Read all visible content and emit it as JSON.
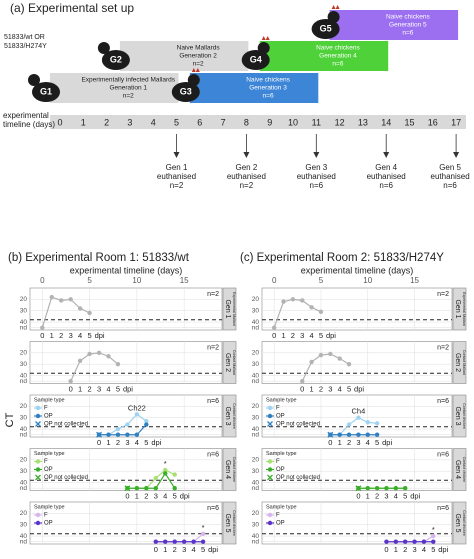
{
  "setup": {
    "title": "(a) Experimental set up",
    "virus": [
      "51833/wt  OR",
      "51833/H274Y"
    ],
    "groups": [
      {
        "icon": "G1",
        "lines": [
          "Experimentally infected Mallards",
          "Generation 1",
          "n=2"
        ],
        "color": "#d9d9d9",
        "days": [
          0,
          5
        ]
      },
      {
        "icon": "G2",
        "lines": [
          "Naive Mallards",
          "Generation 2",
          "n=2"
        ],
        "color": "#d9d9d9",
        "days": [
          3,
          8
        ]
      },
      {
        "icon": "G3",
        "lines": [
          "Naive chickens",
          "Generation 3",
          "n=6"
        ],
        "color": "#3d85d6",
        "days": [
          6,
          11
        ]
      },
      {
        "icon": "G4",
        "lines": [
          "Naive chickens",
          "Generation 4",
          "n=6"
        ],
        "color": "#4fd13a",
        "days": [
          9,
          14
        ]
      },
      {
        "icon": "G5",
        "lines": [
          "Naive chickens",
          "Generation 5",
          "n=6"
        ],
        "color": "#9b6ff0",
        "days": [
          12,
          17
        ]
      }
    ],
    "timeline_label": [
      "experimental",
      "timeline (days)"
    ],
    "days": [
      0,
      1,
      2,
      3,
      4,
      5,
      6,
      7,
      8,
      9,
      10,
      11,
      12,
      13,
      14,
      15,
      16,
      17
    ],
    "euthanised": [
      {
        "day": 5,
        "lines": [
          "Gen 1",
          "euthanised",
          "n=2"
        ]
      },
      {
        "day": 8,
        "lines": [
          "Gen 2",
          "euthanised",
          "n=2"
        ]
      },
      {
        "day": 11,
        "lines": [
          "Gen 3",
          "euthanised",
          "n=6"
        ]
      },
      {
        "day": 14,
        "lines": [
          "Gen 4",
          "euthanised",
          "n=6"
        ]
      },
      {
        "day": 17,
        "lines": [
          "Gen 5",
          "euthanised",
          "n=6"
        ]
      }
    ]
  },
  "ylabel": "CT",
  "rooms": [
    {
      "title": "(b) Experimental Room 1: 51833/wt",
      "axis_label": "experimental timeline (days)",
      "xlim": [
        -1.3,
        19
      ],
      "xticks": [
        0,
        5,
        10,
        15
      ],
      "ylim": [
        10,
        47
      ],
      "yticks": [
        20,
        30,
        40,
        {
          "value": 45,
          "label": "nd"
        }
      ],
      "threshold": 38,
      "dpi_label": "dpi",
      "dpi_ticks": [
        0,
        1,
        2,
        3,
        4,
        5
      ],
      "panels": [
        {
          "n": "n=2",
          "gen": "Gen 1",
          "role": "Experimental Mallard",
          "start": 0,
          "series": [
            {
              "color": "#b3b3b3",
              "values": [
                45,
                18,
                21,
                20,
                28,
                32
              ]
            }
          ]
        },
        {
          "n": "n=2",
          "gen": "Gen 2",
          "role": "Contact Mallard",
          "start": 3,
          "series": [
            {
              "color": "#b3b3b3",
              "values": [
                45,
                27,
                21,
                20,
                23,
                30
              ]
            }
          ]
        },
        {
          "n": "n=6",
          "gen": "Gen 3",
          "role": "Contact chicken",
          "start": 6,
          "legend_title": "Sample type",
          "annotation": "Ch22",
          "series": [
            {
              "name": "F",
              "color": "#9ed3f2",
              "values": [
                45,
                45,
                40,
                36,
                27,
                33
              ]
            },
            {
              "name": "OP",
              "color": "#2f7fc1",
              "values": [
                45,
                45,
                45,
                45,
                45,
                36
              ]
            },
            {
              "name": "OP not collected",
              "color": "#2f7fc1",
              "marker": "x",
              "values": [
                45,
                null,
                null,
                null,
                null,
                null
              ]
            }
          ]
        },
        {
          "n": "n=6",
          "gen": "Gen 4",
          "role": "Contact chicken",
          "start": 9,
          "legend_title": "Sample type",
          "annotation": "*",
          "series": [
            {
              "name": "F",
              "color": "#a6e070",
              "values": [
                45,
                45,
                45,
                36,
                29,
                33
              ]
            },
            {
              "name": "OP",
              "color": "#3aae2a",
              "values": [
                45,
                45,
                45,
                45,
                32,
                45
              ]
            },
            {
              "name": "OP not collected",
              "color": "#3aae2a",
              "marker": "x",
              "values": [
                45,
                null,
                null,
                null,
                null,
                null
              ]
            }
          ]
        },
        {
          "n": "n=6",
          "gen": "Gen 5",
          "role": "Contact chicken",
          "start": 12,
          "legend_title": "Sample type",
          "annotation": "*",
          "series": [
            {
              "name": "F",
              "color": "#d9b3ee",
              "values": [
                45,
                45,
                45,
                45,
                45,
                38
              ]
            },
            {
              "name": "OP",
              "color": "#5b35c9",
              "values": [
                45,
                45,
                45,
                45,
                45,
                45
              ]
            }
          ]
        }
      ]
    },
    {
      "title": "(c) Experimental Room 2: 51833/H274Y",
      "axis_label": "experimental timeline (days)",
      "xlim": [
        -1.3,
        19
      ],
      "xticks": [
        0,
        5,
        10,
        15
      ],
      "ylim": [
        10,
        47
      ],
      "yticks": [
        20,
        30,
        40,
        {
          "value": 45,
          "label": "nd"
        }
      ],
      "threshold": 38,
      "dpi_label": "dpi",
      "dpi_ticks": [
        0,
        1,
        2,
        3,
        4,
        5
      ],
      "panels": [
        {
          "n": "n=2",
          "gen": "Gen 1",
          "role": "Experimental Mallard",
          "start": 0,
          "series": [
            {
              "color": "#b3b3b3",
              "values": [
                45,
                22,
                20,
                21,
                27,
                31
              ]
            }
          ]
        },
        {
          "n": "n=2",
          "gen": "Gen 2",
          "role": "Contact Mallard",
          "start": 3,
          "series": [
            {
              "color": "#b3b3b3",
              "values": [
                45,
                28,
                22,
                21,
                25,
                30
              ]
            }
          ]
        },
        {
          "n": "n=6",
          "gen": "Gen 3",
          "role": "Contact chicken",
          "start": 6,
          "legend_title": "Sample type",
          "annotation": "Ch4",
          "series": [
            {
              "name": "F",
              "color": "#9ed3f2",
              "values": [
                45,
                45,
                36,
                30,
                34,
                35
              ]
            },
            {
              "name": "OP",
              "color": "#2f7fc1",
              "values": [
                45,
                45,
                45,
                45,
                45,
                45
              ]
            },
            {
              "name": "OP not collected",
              "color": "#2f7fc1",
              "marker": "x",
              "values": [
                45,
                null,
                null,
                null,
                null,
                null
              ]
            }
          ]
        },
        {
          "n": "n=6",
          "gen": "Gen 4",
          "role": "Contact chicken",
          "start": 9,
          "legend_title": "Sample type",
          "series": [
            {
              "name": "F",
              "color": "#a6e070",
              "values": [
                45,
                45,
                45,
                45,
                45,
                45
              ]
            },
            {
              "name": "OP",
              "color": "#3aae2a",
              "values": [
                45,
                45,
                45,
                45,
                45,
                45
              ]
            },
            {
              "name": "OP not collected",
              "color": "#3aae2a",
              "marker": "x",
              "values": [
                45,
                null,
                null,
                null,
                null,
                null
              ]
            }
          ]
        },
        {
          "n": "n=6",
          "gen": "Gen 5",
          "role": "Contact chicken",
          "start": 12,
          "legend_title": "Sample type",
          "annotation": "*",
          "series": [
            {
              "name": "F",
              "color": "#d9b3ee",
              "values": [
                45,
                45,
                45,
                45,
                45,
                40
              ]
            },
            {
              "name": "OP",
              "color": "#5b35c9",
              "values": [
                45,
                45,
                45,
                45,
                45,
                45
              ]
            }
          ]
        }
      ]
    }
  ]
}
